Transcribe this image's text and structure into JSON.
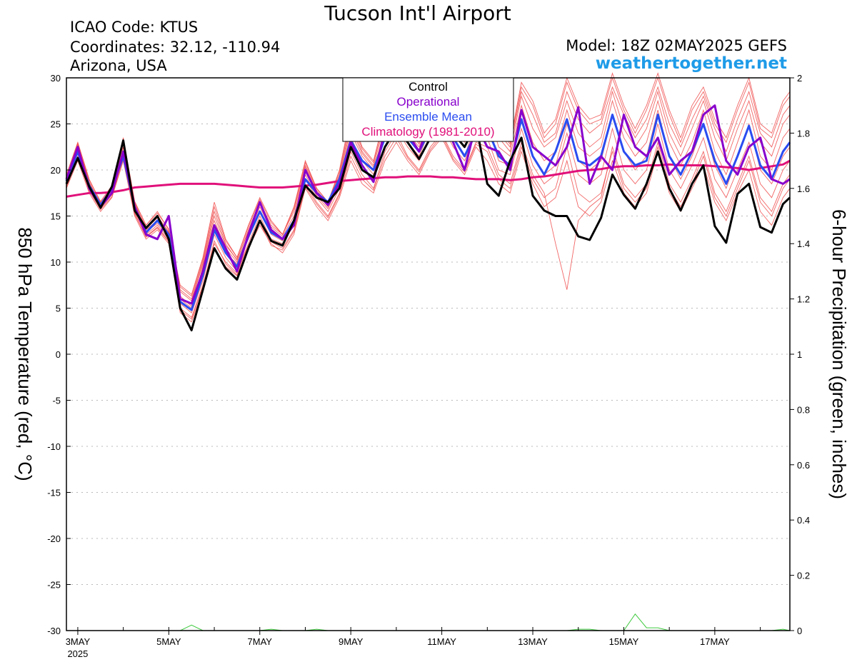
{
  "header": {
    "title": "Tucson Int'l Airport",
    "icao": "ICAO Code: KTUS",
    "coords": "Coordinates: 32.12, -110.94",
    "location": "Arizona, USA",
    "model": "Model: 18Z 02MAY2025 GEFS",
    "site": "weathertogether.net"
  },
  "chart_data": {
    "type": "line",
    "title": "Tucson Int'l Airport",
    "ylabel": "850 hPa Temperature (red, °C)",
    "y2label": "6-hour Precipitation (green, inches)",
    "ylim": [
      -30,
      30
    ],
    "y2lim": [
      0,
      2
    ],
    "yticks": [
      "30",
      "25",
      "20",
      "15",
      "10",
      "5",
      "0",
      "-5",
      "-10",
      "-15",
      "-20",
      "-25",
      "-30"
    ],
    "y2ticks": [
      "2",
      "1.8",
      "1.6",
      "1.4",
      "1.2",
      "1",
      "0.8",
      "0.6",
      "0.4",
      "0.2",
      "0"
    ],
    "xlim": [
      2.75,
      18.65
    ],
    "x_unit": "day of May 2025",
    "xticks": [
      {
        "x": 3,
        "label": "3MAY",
        "sub": "2025"
      },
      {
        "x": 5,
        "label": "5MAY"
      },
      {
        "x": 7,
        "label": "7MAY"
      },
      {
        "x": 9,
        "label": "9MAY"
      },
      {
        "x": 11,
        "label": "11MAY"
      },
      {
        "x": 13,
        "label": "13MAY"
      },
      {
        "x": 15,
        "label": "15MAY"
      },
      {
        "x": 17,
        "label": "17MAY"
      }
    ],
    "grid": true,
    "legend": {
      "position": "top-center",
      "entries": [
        {
          "label": "Control",
          "color": "#000000"
        },
        {
          "label": "Operational",
          "color": "#8800cc"
        },
        {
          "label": "Ensemble Mean",
          "color": "#2a4cf0"
        },
        {
          "label": "Climatology (1981-2010)",
          "color": "#e0107a"
        }
      ]
    },
    "x": [
      2.75,
      3.0,
      3.25,
      3.5,
      3.75,
      4.0,
      4.25,
      4.5,
      4.75,
      5.0,
      5.25,
      5.5,
      5.75,
      6.0,
      6.25,
      6.5,
      6.75,
      7.0,
      7.25,
      7.5,
      7.75,
      8.0,
      8.25,
      8.5,
      8.75,
      9.0,
      9.25,
      9.5,
      9.75,
      10.0,
      10.25,
      10.5,
      10.75,
      11.0,
      11.25,
      11.5,
      11.75,
      12.0,
      12.25,
      12.5,
      12.75,
      13.0,
      13.25,
      13.5,
      13.75,
      14.0,
      14.25,
      14.5,
      14.75,
      15.0,
      15.25,
      15.5,
      15.75,
      16.0,
      16.25,
      16.5,
      16.75,
      17.0,
      17.25,
      17.5,
      17.75,
      18.0,
      18.25,
      18.5,
      18.65
    ],
    "series": [
      {
        "name": "Control",
        "color": "#000000",
        "width": 3,
        "values": [
          18.5,
          21.3,
          18.2,
          15.9,
          18.2,
          23.2,
          15.6,
          13.7,
          15.0,
          12.5,
          5.0,
          2.6,
          7.0,
          11.5,
          9.3,
          8.1,
          11.5,
          14.5,
          12.3,
          11.8,
          14.5,
          18.3,
          17.0,
          16.5,
          18.0,
          22.5,
          20.0,
          19.2,
          22.5,
          24.5,
          23.0,
          21.2,
          23.5,
          25.0,
          24.0,
          22.5,
          25.0,
          18.5,
          17.2,
          21.0,
          23.5,
          17.2,
          15.6,
          15.0,
          15.0,
          12.8,
          12.4,
          14.8,
          19.5,
          17.3,
          15.8,
          18.5,
          22.0,
          18.0,
          15.6,
          18.5,
          20.5,
          13.9,
          12.1,
          17.4,
          18.5,
          13.8,
          13.2,
          16.3,
          17.0
        ]
      },
      {
        "name": "Operational",
        "color": "#8800cc",
        "width": 3,
        "values": [
          19.0,
          22.5,
          18.0,
          16.0,
          17.5,
          22.0,
          16.0,
          13.0,
          12.5,
          15.0,
          6.0,
          5.5,
          9.0,
          14.0,
          11.5,
          9.0,
          13.0,
          16.5,
          13.5,
          12.5,
          14.0,
          20.0,
          17.5,
          16.2,
          18.5,
          23.0,
          20.5,
          18.7,
          24.5,
          26.0,
          24.0,
          22.0,
          25.5,
          27.0,
          23.0,
          20.0,
          25.0,
          22.5,
          22.0,
          20.0,
          26.5,
          22.5,
          21.5,
          20.5,
          22.5,
          26.8,
          18.5,
          21.5,
          20.0,
          26.0,
          22.5,
          21.5,
          23.5,
          19.5,
          21.0,
          22.0,
          26.0,
          27.0,
          21.0,
          19.5,
          22.5,
          23.5,
          19.0,
          18.5,
          19.0
        ]
      },
      {
        "name": "Ensemble Mean",
        "color": "#2a4cf0",
        "width": 3,
        "values": [
          18.8,
          22.0,
          18.3,
          16.2,
          18.0,
          21.5,
          16.0,
          13.2,
          14.5,
          13.0,
          5.7,
          4.8,
          8.6,
          13.5,
          11.0,
          9.5,
          12.8,
          15.5,
          13.2,
          12.5,
          14.5,
          19.0,
          17.5,
          16.5,
          19.0,
          23.2,
          21.0,
          20.0,
          23.5,
          25.5,
          23.5,
          22.0,
          24.5,
          26.0,
          23.5,
          21.5,
          24.0,
          24.5,
          21.5,
          20.5,
          25.5,
          21.5,
          19.5,
          22.0,
          25.5,
          21.0,
          20.5,
          21.5,
          26.0,
          22.0,
          20.5,
          21.0,
          26.0,
          21.5,
          19.5,
          22.0,
          25.0,
          21.0,
          18.5,
          21.5,
          24.8,
          20.5,
          19.0,
          22.0,
          23.0
        ]
      },
      {
        "name": "Climatology (1981-2010)",
        "color": "#e0107a",
        "width": 3,
        "values": [
          17.1,
          17.3,
          17.5,
          17.5,
          17.6,
          17.8,
          18.1,
          18.2,
          18.3,
          18.4,
          18.5,
          18.5,
          18.5,
          18.5,
          18.4,
          18.3,
          18.2,
          18.1,
          18.1,
          18.1,
          18.2,
          18.3,
          18.4,
          18.6,
          18.8,
          18.9,
          19.0,
          19.1,
          19.2,
          19.2,
          19.3,
          19.3,
          19.3,
          19.2,
          19.2,
          19.1,
          19.0,
          19.0,
          19.0,
          18.9,
          19.0,
          19.2,
          19.3,
          19.5,
          19.7,
          19.9,
          20.0,
          20.1,
          20.3,
          20.4,
          20.4,
          20.5,
          20.5,
          20.6,
          20.5,
          20.5,
          20.5,
          20.4,
          20.3,
          20.2,
          20.0,
          20.2,
          20.4,
          20.6,
          21.0
        ]
      }
    ],
    "ensemble": {
      "color": "#f04a4a",
      "members": [
        [
          19.5,
          23.0,
          19.0,
          16.5,
          18.0,
          23.5,
          16.5,
          14.0,
          15.5,
          13.5,
          7.5,
          6.5,
          10.5,
          16.5,
          12.5,
          10.5,
          14.0,
          17.0,
          14.5,
          13.0,
          16.0,
          21.0,
          18.0,
          16.5,
          20.0,
          26.0,
          22.5,
          21.0,
          26.0,
          28.5,
          26.0,
          23.5,
          27.0,
          29.5,
          26.5,
          24.0,
          28.0,
          29.0,
          24.5,
          23.0,
          29.5,
          27.5,
          24.0,
          25.5,
          30.0,
          27.0,
          25.5,
          26.0,
          30.5,
          27.0,
          24.5,
          27.0,
          30.5,
          26.5,
          23.5,
          27.0,
          29.0,
          25.5,
          23.5,
          27.0,
          30.0,
          25.0,
          24.0,
          27.5,
          28.5
        ],
        [
          18.0,
          21.0,
          17.5,
          15.5,
          17.0,
          21.0,
          15.0,
          12.5,
          13.5,
          12.0,
          4.5,
          3.5,
          7.0,
          11.5,
          9.5,
          8.5,
          11.5,
          14.0,
          12.0,
          11.0,
          13.0,
          18.0,
          16.0,
          14.5,
          17.0,
          21.0,
          18.5,
          17.5,
          21.0,
          23.0,
          21.0,
          19.5,
          22.0,
          23.5,
          21.0,
          19.5,
          22.5,
          21.0,
          18.5,
          17.5,
          22.0,
          18.5,
          16.0,
          17.0,
          21.0,
          16.0,
          15.0,
          16.5,
          21.0,
          17.5,
          16.0,
          17.5,
          22.0,
          17.5,
          15.5,
          18.0,
          20.5,
          16.5,
          14.5,
          17.5,
          20.0,
          15.5,
          14.0,
          17.0,
          18.0
        ],
        [
          19.0,
          22.5,
          18.5,
          16.0,
          17.5,
          22.5,
          16.0,
          13.5,
          14.5,
          13.0,
          6.0,
          5.0,
          9.5,
          14.5,
          11.5,
          10.0,
          13.0,
          16.0,
          13.5,
          12.5,
          14.5,
          20.0,
          17.5,
          16.0,
          19.0,
          24.0,
          21.5,
          20.0,
          24.5,
          26.5,
          24.0,
          22.5,
          25.5,
          27.0,
          24.5,
          22.5,
          26.0,
          26.5,
          22.5,
          21.5,
          27.0,
          23.0,
          21.0,
          22.0,
          26.5,
          22.5,
          21.5,
          22.5,
          27.5,
          23.5,
          21.5,
          23.0,
          27.5,
          23.0,
          20.5,
          23.0,
          26.5,
          22.0,
          19.5,
          23.0,
          26.5,
          21.5,
          20.0,
          23.5,
          24.5
        ],
        [
          18.5,
          21.5,
          18.0,
          16.0,
          17.5,
          22.0,
          15.5,
          13.0,
          14.0,
          12.5,
          5.5,
          4.5,
          8.0,
          13.0,
          10.5,
          9.0,
          12.0,
          15.0,
          12.5,
          12.0,
          14.0,
          19.0,
          17.0,
          15.5,
          18.0,
          22.5,
          20.0,
          19.0,
          22.5,
          24.5,
          22.5,
          21.0,
          23.5,
          25.0,
          22.5,
          21.0,
          24.0,
          23.5,
          20.0,
          19.5,
          24.5,
          20.5,
          18.5,
          19.5,
          24.0,
          19.5,
          18.5,
          19.5,
          24.5,
          20.0,
          18.5,
          20.0,
          25.0,
          20.0,
          18.0,
          20.5,
          23.5,
          19.0,
          17.0,
          20.0,
          23.0,
          18.5,
          17.0,
          20.0,
          21.0
        ],
        [
          19.2,
          22.8,
          18.7,
          16.3,
          18.0,
          23.0,
          16.2,
          13.8,
          15.0,
          13.3,
          7.0,
          6.0,
          10.0,
          15.5,
          12.0,
          10.2,
          13.5,
          16.5,
          14.0,
          13.0,
          15.5,
          20.5,
          18.0,
          16.5,
          19.5,
          25.0,
          22.0,
          20.5,
          25.0,
          27.5,
          25.0,
          23.0,
          26.5,
          28.5,
          25.5,
          23.5,
          27.0,
          28.0,
          24.0,
          22.5,
          28.5,
          26.0,
          23.0,
          24.0,
          28.5,
          25.5,
          24.0,
          25.0,
          29.0,
          26.0,
          23.5,
          25.5,
          29.0,
          25.0,
          22.5,
          25.5,
          28.0,
          24.5,
          22.0,
          25.5,
          28.5,
          24.0,
          22.5,
          26.0,
          27.0
        ],
        [
          18.3,
          21.2,
          17.8,
          15.8,
          17.3,
          21.5,
          15.2,
          12.8,
          13.8,
          12.3,
          5.0,
          4.0,
          7.5,
          12.0,
          10.0,
          8.8,
          11.8,
          14.5,
          12.2,
          11.5,
          13.5,
          18.5,
          16.5,
          15.0,
          17.5,
          22.0,
          19.5,
          18.0,
          22.0,
          24.0,
          21.5,
          20.0,
          22.5,
          24.0,
          21.5,
          20.0,
          23.0,
          22.5,
          19.5,
          18.5,
          23.0,
          19.5,
          17.5,
          12.0,
          7.0,
          14.5,
          16.0,
          17.0,
          22.5,
          18.5,
          17.0,
          18.5,
          23.0,
          18.5,
          16.5,
          19.0,
          22.0,
          17.5,
          15.5,
          18.5,
          21.5,
          17.0,
          15.5,
          18.5,
          19.5
        ],
        [
          18.7,
          22.2,
          18.3,
          16.1,
          17.8,
          22.5,
          15.8,
          13.3,
          14.2,
          12.8,
          6.3,
          5.2,
          9.0,
          14.0,
          11.0,
          9.8,
          12.5,
          15.5,
          13.0,
          12.3,
          14.2,
          19.5,
          17.2,
          15.8,
          18.5,
          23.5,
          21.0,
          19.5,
          23.5,
          25.5,
          23.0,
          21.5,
          24.5,
          26.0,
          23.5,
          21.5,
          25.0,
          25.0,
          21.0,
          20.5,
          25.5,
          21.5,
          19.5,
          20.5,
          25.0,
          21.0,
          20.0,
          21.0,
          26.0,
          22.0,
          20.0,
          21.5,
          26.5,
          21.5,
          19.0,
          21.5,
          25.0,
          20.5,
          18.0,
          21.5,
          25.0,
          20.0,
          18.5,
          21.5,
          22.5
        ],
        [
          18.9,
          22.6,
          18.6,
          16.4,
          18.2,
          23.2,
          16.4,
          13.6,
          14.8,
          13.2,
          6.8,
          5.8,
          9.8,
          15.0,
          11.8,
          10.3,
          13.3,
          16.3,
          13.8,
          12.8,
          15.0,
          20.3,
          17.8,
          16.3,
          19.3,
          24.5,
          21.8,
          20.3,
          24.0,
          26.8,
          24.5,
          22.8,
          26.0,
          28.0,
          25.0,
          23.0,
          26.5,
          27.5,
          23.5,
          22.0,
          28.0,
          24.5,
          22.5,
          23.5,
          27.5,
          24.0,
          22.5,
          23.5,
          28.5,
          24.5,
          22.5,
          24.5,
          28.5,
          24.0,
          21.5,
          24.5,
          27.5,
          23.5,
          21.0,
          24.5,
          27.5,
          23.0,
          21.5,
          25.0,
          26.0
        ],
        [
          18.1,
          21.4,
          17.7,
          15.7,
          17.1,
          21.2,
          15.3,
          12.7,
          13.7,
          12.2,
          4.8,
          3.8,
          7.3,
          12.3,
          9.8,
          8.6,
          11.5,
          14.3,
          11.8,
          11.3,
          13.3,
          18.2,
          16.3,
          14.8,
          17.3,
          21.5,
          19.0,
          17.8,
          21.5,
          23.5,
          21.3,
          19.8,
          22.2,
          23.8,
          21.2,
          19.8,
          22.8,
          22.0,
          19.0,
          18.0,
          22.5,
          19.0,
          17.0,
          18.0,
          22.5,
          17.5,
          16.5,
          17.5,
          22.0,
          18.0,
          16.5,
          18.0,
          22.5,
          18.0,
          16.0,
          18.5,
          21.5,
          17.0,
          15.0,
          18.0,
          21.0,
          16.5,
          15.0,
          18.0,
          19.0
        ],
        [
          19.3,
          22.9,
          18.9,
          16.6,
          18.3,
          23.4,
          16.6,
          14.0,
          15.3,
          13.6,
          7.3,
          6.3,
          10.3,
          16.0,
          12.3,
          10.5,
          13.8,
          16.8,
          14.3,
          13.0,
          15.8,
          20.8,
          18.0,
          16.5,
          19.8,
          25.5,
          22.3,
          20.8,
          25.5,
          28.0,
          25.5,
          23.3,
          26.8,
          29.0,
          26.0,
          23.8,
          27.5,
          28.5,
          24.3,
          22.8,
          29.0,
          27.0,
          23.5,
          25.0,
          29.5,
          26.5,
          25.0,
          25.5,
          30.0,
          26.5,
          24.0,
          26.5,
          30.0,
          26.0,
          23.0,
          26.5,
          28.5,
          25.0,
          23.0,
          26.5,
          29.5,
          24.5,
          23.5,
          27.0,
          28.0
        ]
      ]
    },
    "precip": {
      "color": "#3ec93e",
      "values": [
        0,
        0,
        0,
        0,
        0,
        0,
        0,
        0,
        0,
        0,
        0,
        0.02,
        0,
        0,
        0,
        0,
        0,
        0,
        0.005,
        0,
        0,
        0,
        0.005,
        0,
        0,
        0,
        0,
        0,
        0,
        0,
        0,
        0,
        0,
        0,
        0,
        0,
        0,
        0,
        0,
        0,
        0,
        0,
        0,
        0,
        0,
        0.005,
        0.005,
        0,
        0,
        0,
        0.06,
        0.01,
        0.01,
        0,
        0,
        0,
        0,
        0,
        0,
        0,
        0,
        0,
        0,
        0.005,
        0
      ]
    }
  }
}
